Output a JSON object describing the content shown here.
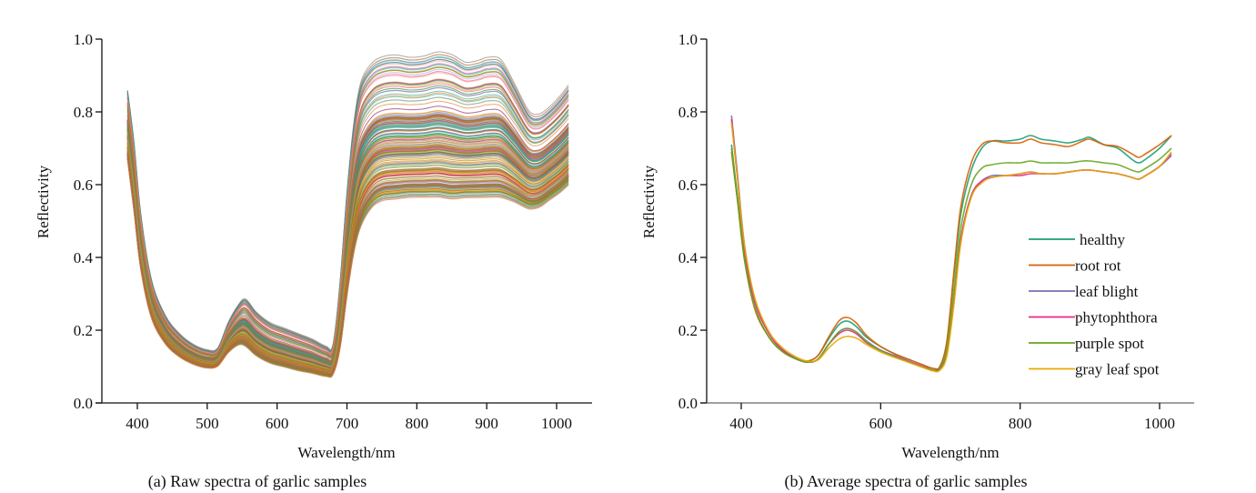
{
  "chart_data": [
    {
      "id": "raw",
      "type": "line",
      "caption": "(a) Raw spectra of garlic samples",
      "xlabel": "Wavelength/nm",
      "ylabel": "Reflectivity",
      "xlim": [
        345,
        1050
      ],
      "ylim": [
        0.0,
        1.0
      ],
      "xticks": [
        400,
        500,
        600,
        700,
        800,
        900,
        1000
      ],
      "xtick_labels": [
        "400",
        "500",
        "600",
        "700",
        "800",
        "900",
        "1000"
      ],
      "yticks": [
        0.0,
        0.2,
        0.4,
        0.6,
        0.8,
        1.0
      ],
      "ytick_labels": [
        "0.0",
        "0.2",
        "0.4",
        "0.6",
        "0.8",
        "1.0"
      ],
      "grid": false,
      "legend": "none",
      "note": "Hundreds of overlapping multicolored sample spectra; NIR plateau spans roughly 0.53 to 0.95",
      "x": [
        386,
        395,
        405,
        420,
        440,
        460,
        480,
        500,
        515,
        530,
        545,
        555,
        570,
        590,
        610,
        630,
        650,
        670,
        680,
        690,
        700,
        710,
        720,
        735,
        750,
        770,
        790,
        810,
        830,
        850,
        870,
        890,
        900,
        920,
        940,
        960,
        975,
        990,
        1005,
        1017
      ],
      "envelope_low": [
        0.66,
        0.52,
        0.36,
        0.23,
        0.16,
        0.125,
        0.105,
        0.095,
        0.1,
        0.135,
        0.155,
        0.15,
        0.125,
        0.105,
        0.095,
        0.085,
        0.078,
        0.07,
        0.075,
        0.14,
        0.28,
        0.4,
        0.47,
        0.52,
        0.54,
        0.545,
        0.55,
        0.55,
        0.55,
        0.545,
        0.55,
        0.55,
        0.55,
        0.55,
        0.54,
        0.525,
        0.53,
        0.55,
        0.57,
        0.59
      ],
      "envelope_high": [
        0.86,
        0.72,
        0.52,
        0.34,
        0.24,
        0.19,
        0.16,
        0.145,
        0.15,
        0.22,
        0.27,
        0.285,
        0.25,
        0.22,
        0.205,
        0.19,
        0.175,
        0.155,
        0.16,
        0.33,
        0.58,
        0.77,
        0.88,
        0.93,
        0.94,
        0.945,
        0.955,
        0.96,
        0.955,
        0.945,
        0.94,
        0.95,
        0.95,
        0.93,
        0.87,
        0.8,
        0.79,
        0.81,
        0.84,
        0.87
      ],
      "palette": [
        "#1b9e77",
        "#d95f02",
        "#7570b3",
        "#e7298a",
        "#66a61e",
        "#e6ab02",
        "#a6761d",
        "#666666",
        "#8da0cb",
        "#fc8d62"
      ]
    },
    {
      "id": "average",
      "type": "line",
      "caption": "(b) Average spectra of garlic samples",
      "xlabel": "Wavelength/nm",
      "ylabel": "Reflectivity",
      "xlim": [
        340,
        1055
      ],
      "ylim": [
        0.0,
        1.0
      ],
      "xticks": [
        400,
        600,
        800,
        1000
      ],
      "xtick_labels": [
        "400",
        "600",
        "800",
        "1000"
      ],
      "yticks": [
        0.0,
        0.2,
        0.4,
        0.6,
        0.8,
        1.0
      ],
      "ytick_labels": [
        "0.0",
        "0.2",
        "0.4",
        "0.6",
        "0.8",
        "1.0"
      ],
      "grid": false,
      "legend": "center-right",
      "x": [
        386,
        395,
        405,
        420,
        440,
        460,
        480,
        495,
        510,
        525,
        540,
        552,
        565,
        580,
        600,
        620,
        640,
        660,
        675,
        685,
        695,
        705,
        715,
        730,
        745,
        760,
        780,
        800,
        815,
        830,
        850,
        870,
        890,
        900,
        920,
        940,
        960,
        970,
        980,
        1000,
        1017
      ],
      "series": [
        {
          "name": "healthy",
          "color": "#1b9e77",
          "values": [
            0.71,
            0.56,
            0.4,
            0.26,
            0.18,
            0.14,
            0.12,
            0.115,
            0.13,
            0.175,
            0.215,
            0.225,
            0.21,
            0.18,
            0.155,
            0.135,
            0.12,
            0.105,
            0.095,
            0.1,
            0.17,
            0.35,
            0.52,
            0.64,
            0.7,
            0.72,
            0.72,
            0.725,
            0.735,
            0.725,
            0.72,
            0.715,
            0.725,
            0.73,
            0.71,
            0.7,
            0.67,
            0.66,
            0.67,
            0.7,
            0.735
          ]
        },
        {
          "name": "root rot",
          "color": "#d95f02",
          "values": [
            0.69,
            0.55,
            0.39,
            0.255,
            0.18,
            0.14,
            0.12,
            0.115,
            0.13,
            0.18,
            0.225,
            0.235,
            0.22,
            0.185,
            0.155,
            0.135,
            0.12,
            0.105,
            0.095,
            0.1,
            0.17,
            0.36,
            0.54,
            0.66,
            0.71,
            0.72,
            0.715,
            0.715,
            0.725,
            0.715,
            0.71,
            0.705,
            0.72,
            0.725,
            0.71,
            0.705,
            0.685,
            0.675,
            0.685,
            0.71,
            0.735
          ]
        },
        {
          "name": "leaf blight",
          "color": "#7570b3",
          "values": [
            0.79,
            0.62,
            0.43,
            0.28,
            0.19,
            0.145,
            0.122,
            0.112,
            0.12,
            0.16,
            0.195,
            0.205,
            0.195,
            0.17,
            0.145,
            0.13,
            0.115,
            0.1,
            0.09,
            0.095,
            0.14,
            0.28,
            0.45,
            0.57,
            0.61,
            0.625,
            0.625,
            0.63,
            0.635,
            0.63,
            0.63,
            0.635,
            0.64,
            0.64,
            0.635,
            0.63,
            0.62,
            0.615,
            0.625,
            0.65,
            0.68
          ]
        },
        {
          "name": "phytophthora",
          "color": "#e7298a",
          "values": [
            0.78,
            0.61,
            0.42,
            0.275,
            0.19,
            0.145,
            0.12,
            0.112,
            0.12,
            0.16,
            0.19,
            0.2,
            0.19,
            0.165,
            0.143,
            0.128,
            0.114,
            0.1,
            0.09,
            0.094,
            0.14,
            0.28,
            0.45,
            0.57,
            0.61,
            0.62,
            0.625,
            0.625,
            0.63,
            0.63,
            0.63,
            0.635,
            0.64,
            0.64,
            0.635,
            0.63,
            0.62,
            0.615,
            0.625,
            0.65,
            0.685
          ]
        },
        {
          "name": "purple spot",
          "color": "#66a61e",
          "values": [
            0.7,
            0.55,
            0.39,
            0.26,
            0.18,
            0.14,
            0.12,
            0.112,
            0.12,
            0.16,
            0.195,
            0.205,
            0.195,
            0.168,
            0.143,
            0.127,
            0.112,
            0.098,
            0.09,
            0.094,
            0.15,
            0.31,
            0.48,
            0.6,
            0.645,
            0.655,
            0.66,
            0.66,
            0.665,
            0.66,
            0.66,
            0.66,
            0.665,
            0.665,
            0.66,
            0.655,
            0.64,
            0.635,
            0.645,
            0.67,
            0.7
          ]
        },
        {
          "name": "gray leaf spot",
          "color": "#e6ab02",
          "values": [
            0.77,
            0.61,
            0.43,
            0.285,
            0.195,
            0.15,
            0.125,
            0.115,
            0.118,
            0.15,
            0.175,
            0.183,
            0.178,
            0.16,
            0.14,
            0.125,
            0.112,
            0.098,
            0.088,
            0.09,
            0.13,
            0.27,
            0.44,
            0.565,
            0.605,
            0.62,
            0.625,
            0.63,
            0.635,
            0.63,
            0.63,
            0.635,
            0.64,
            0.64,
            0.635,
            0.63,
            0.62,
            0.615,
            0.625,
            0.65,
            0.69
          ]
        }
      ]
    }
  ]
}
